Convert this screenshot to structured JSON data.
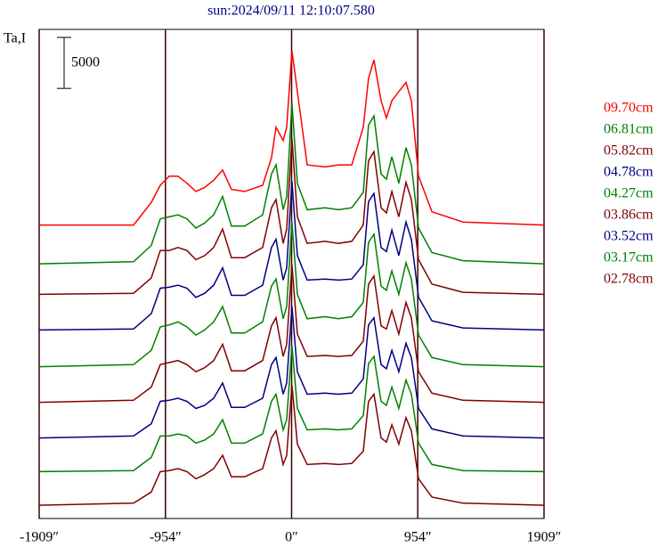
{
  "chart_data": {
    "type": "line",
    "title": "sun:2024/09/11 12:10:07.580",
    "y_label": "Ta,I",
    "scale_bar": 5000,
    "x": [
      -1909,
      -1195,
      -1061,
      -993,
      -926,
      -859,
      -791,
      -724,
      -657,
      -589,
      -522,
      -455,
      -354,
      -219,
      -152,
      -118,
      -64,
      -37,
      3,
      44,
      118,
      253,
      354,
      455,
      542,
      582,
      623,
      677,
      717,
      758,
      811,
      865,
      906,
      960,
      1061,
      1296,
      1909
    ],
    "xlim": [
      -1909,
      1909
    ],
    "xticks": [
      {
        "value": -1909,
        "label": "-1909″"
      },
      {
        "value": -954,
        "label": "-954″"
      },
      {
        "value": 0,
        "label": "0″"
      },
      {
        "value": 954,
        "label": "954″"
      },
      {
        "value": 1909,
        "label": "1909″"
      }
    ],
    "ylim": [
      0,
      48000
    ],
    "grid": true,
    "series": [
      {
        "name": "09.70cm",
        "color": "#ff0000",
        "values": [
          28800,
          28800,
          31000,
          32700,
          33600,
          33600,
          32900,
          32100,
          32500,
          33200,
          34200,
          32300,
          32100,
          32700,
          35400,
          38400,
          37100,
          38400,
          45900,
          41900,
          34700,
          34500,
          34700,
          34700,
          38400,
          43200,
          45000,
          41000,
          39300,
          41000,
          41900,
          42800,
          41000,
          33600,
          30100,
          29100,
          28800
        ]
      },
      {
        "name": "06.81cm",
        "color": "#008000",
        "values": [
          25000,
          25200,
          26800,
          29400,
          29600,
          29800,
          29400,
          28500,
          29000,
          29800,
          31600,
          28700,
          28700,
          29800,
          33800,
          34700,
          30300,
          31600,
          40800,
          32900,
          30300,
          30500,
          30300,
          30500,
          32000,
          38600,
          39500,
          33800,
          33300,
          35500,
          32900,
          36400,
          34700,
          28500,
          26100,
          25300,
          25000
        ]
      },
      {
        "name": "05.82cm",
        "color": "#800000",
        "values": [
          22000,
          22100,
          23600,
          26300,
          26300,
          26600,
          26300,
          25400,
          25800,
          26600,
          28400,
          25600,
          25600,
          26600,
          30500,
          31300,
          27000,
          28400,
          37300,
          29600,
          27000,
          27200,
          27000,
          27200,
          28800,
          35100,
          36000,
          30500,
          30000,
          32100,
          29600,
          33000,
          31300,
          25400,
          23000,
          22200,
          22000
        ]
      },
      {
        "name": "04.78cm",
        "color": "#000080",
        "values": [
          18500,
          18600,
          20100,
          22600,
          22700,
          22900,
          22600,
          21700,
          22100,
          22900,
          24600,
          21900,
          21900,
          22900,
          26600,
          27400,
          23400,
          24600,
          33100,
          25800,
          23400,
          23500,
          23400,
          23500,
          24900,
          31100,
          31900,
          26600,
          26200,
          28300,
          25800,
          29100,
          27400,
          21700,
          19400,
          18700,
          18500
        ]
      },
      {
        "name": "04.27cm",
        "color": "#008000",
        "values": [
          14900,
          15100,
          16500,
          18800,
          19000,
          19300,
          18800,
          18000,
          18500,
          19300,
          20800,
          18200,
          18200,
          19300,
          22800,
          23500,
          19600,
          20800,
          29100,
          22000,
          19600,
          19800,
          19600,
          19800,
          21200,
          27100,
          27900,
          22800,
          22400,
          24300,
          22000,
          25100,
          23500,
          18000,
          15800,
          15100,
          14900
        ]
      },
      {
        "name": "03.86cm",
        "color": "#800000",
        "values": [
          11400,
          11600,
          12900,
          15100,
          15300,
          15500,
          15100,
          14400,
          14800,
          15500,
          17100,
          14500,
          14500,
          15500,
          18900,
          19700,
          15900,
          17100,
          24900,
          18100,
          15900,
          16000,
          15900,
          16000,
          17400,
          23000,
          23800,
          18900,
          18600,
          20400,
          18100,
          21200,
          19700,
          14400,
          12300,
          11600,
          11400
        ]
      },
      {
        "name": "03.52cm",
        "color": "#000080",
        "values": [
          7900,
          8100,
          9300,
          11500,
          11600,
          11800,
          11500,
          10800,
          11100,
          11800,
          13300,
          10900,
          10900,
          11800,
          15100,
          15800,
          12200,
          13300,
          20800,
          14400,
          12200,
          12300,
          12200,
          12300,
          13700,
          19000,
          19700,
          15100,
          14700,
          16500,
          14400,
          17200,
          15800,
          10800,
          8800,
          8100,
          7900
        ]
      },
      {
        "name": "03.17cm",
        "color": "#008000",
        "values": [
          4600,
          4700,
          6000,
          8100,
          8100,
          8300,
          8100,
          7400,
          7700,
          8300,
          9700,
          7400,
          7400,
          8300,
          11500,
          12200,
          8700,
          9700,
          17000,
          10800,
          8700,
          8800,
          8700,
          8800,
          10100,
          15200,
          15900,
          11500,
          11100,
          12900,
          10800,
          13600,
          12200,
          7400,
          5300,
          4700,
          4600
        ]
      },
      {
        "name": "02.78cm",
        "color": "#800000",
        "values": [
          1300,
          1500,
          2600,
          4600,
          4700,
          4900,
          4600,
          3900,
          4300,
          4900,
          6200,
          4100,
          4100,
          4900,
          7900,
          8600,
          5300,
          6200,
          13100,
          7300,
          5300,
          5400,
          5300,
          5400,
          6600,
          11500,
          12200,
          7900,
          7500,
          9200,
          7300,
          9900,
          8600,
          3900,
          2100,
          1500,
          1300
        ]
      }
    ]
  }
}
